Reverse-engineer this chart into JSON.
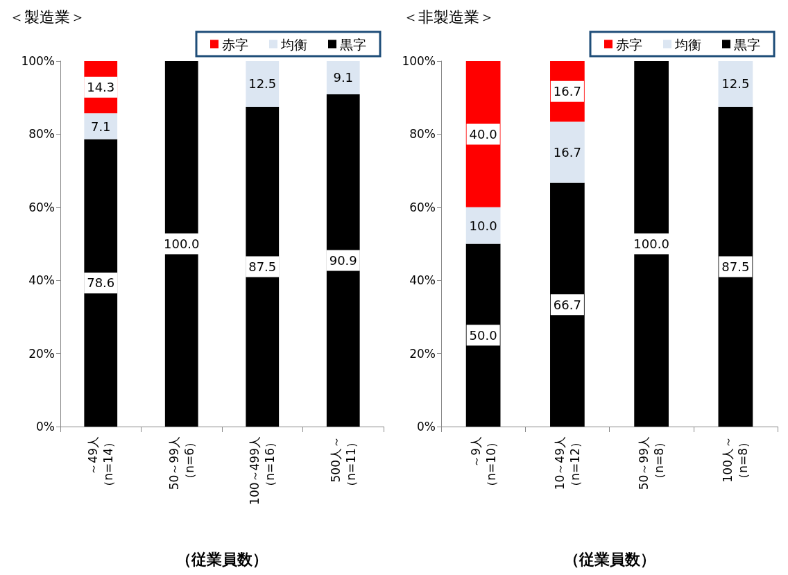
{
  "chart_data": [
    {
      "type": "bar",
      "title": "＜製造業＞",
      "xlabel": "（従業員数）",
      "stacked": true,
      "legend": "top right",
      "grid": false,
      "categories": [
        "～49人（n=14）",
        "50～99人（n=6）",
        "100～499人（n=16）",
        "500人～（n=11）"
      ],
      "ylim": [
        0,
        100
      ],
      "yticks": [
        {
          "value": 0,
          "label": "0%"
        },
        {
          "value": 20,
          "label": "20%"
        },
        {
          "value": 40,
          "label": "40%"
        },
        {
          "value": 60,
          "label": "60%"
        },
        {
          "value": 80,
          "label": "80%"
        },
        {
          "value": 100,
          "label": "100%"
        }
      ],
      "series": [
        {
          "name": "黒字",
          "color": "#000000",
          "values": [
            78.6,
            100.0,
            87.5,
            90.9
          ],
          "value_labels": [
            "78.6",
            "100.0",
            "87.5",
            "90.9"
          ]
        },
        {
          "name": "均衡",
          "color": "#dce6f2",
          "values": [
            7.1,
            null,
            12.5,
            9.1
          ],
          "value_labels": [
            "7.1",
            null,
            "12.5",
            "9.1"
          ]
        },
        {
          "name": "赤字",
          "color": "#ff0000",
          "values": [
            14.3,
            null,
            null,
            null
          ],
          "value_labels": [
            "14.3",
            null,
            null,
            null
          ]
        }
      ]
    },
    {
      "type": "bar",
      "title": "＜非製造業＞",
      "xlabel": "（従業員数）",
      "stacked": true,
      "legend": "top right",
      "grid": false,
      "categories": [
        "～9人（n=10）",
        "10～49人（n=12）",
        "50～99人（n=8）",
        "100人～（n=8）"
      ],
      "ylim": [
        0,
        100
      ],
      "yticks": [
        {
          "value": 0,
          "label": "0%"
        },
        {
          "value": 20,
          "label": "20%"
        },
        {
          "value": 40,
          "label": "40%"
        },
        {
          "value": 60,
          "label": "60%"
        },
        {
          "value": 80,
          "label": "80%"
        },
        {
          "value": 100,
          "label": "100%"
        }
      ],
      "series": [
        {
          "name": "黒字",
          "color": "#000000",
          "values": [
            50.0,
            66.7,
            100.0,
            87.5
          ],
          "value_labels": [
            "50.0",
            "66.7",
            "100.0",
            "87.5"
          ]
        },
        {
          "name": "均衡",
          "color": "#dce6f2",
          "values": [
            10.0,
            16.7,
            null,
            12.5
          ],
          "value_labels": [
            "10.0",
            "16.7",
            null,
            "12.5"
          ]
        },
        {
          "name": "赤字",
          "color": "#ff0000",
          "values": [
            40.0,
            16.7,
            null,
            null
          ],
          "value_labels": [
            "40.0",
            "16.7",
            null,
            null
          ]
        }
      ]
    }
  ]
}
